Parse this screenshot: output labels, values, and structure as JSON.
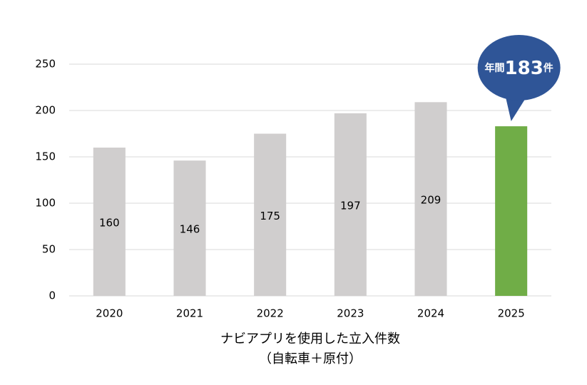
{
  "chart_data": {
    "type": "bar",
    "categories": [
      "2020",
      "2021",
      "2022",
      "2023",
      "2024",
      "2025"
    ],
    "values": [
      160,
      146,
      175,
      197,
      209,
      183
    ],
    "colors": [
      "#d0cece",
      "#d0cece",
      "#d0cece",
      "#d0cece",
      "#d0cece",
      "#70ad47"
    ],
    "ylim": [
      0,
      250
    ],
    "yticks": [
      0,
      50,
      100,
      150,
      200,
      250
    ],
    "grid": true,
    "xlabel": [
      "ナビアプリを使用した立入件数",
      "（自転車＋原付）"
    ],
    "callout": {
      "prefix": "年間",
      "suffix": "件",
      "color": "#2f5597"
    }
  }
}
